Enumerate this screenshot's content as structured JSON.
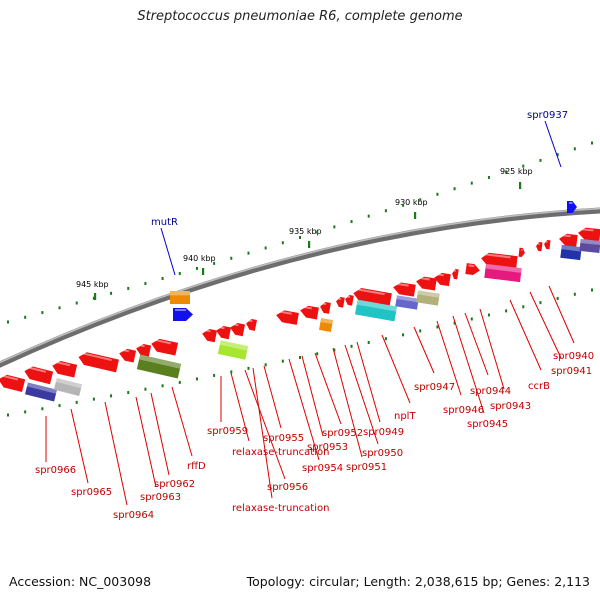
{
  "title": "Streptococcus pneumoniae R6, complete genome",
  "accession": "Accession: NC_003098",
  "topology": "Topology: circular; Length: 2,038,615 bp; Genes: 2,113",
  "colors": {
    "gene": "#ee1111",
    "label": "#c00000",
    "top_label": "#000099",
    "tick": "#1a7a1a",
    "backbone": "#888888"
  },
  "scale_ticks": [
    {
      "label": "945 kbp"
    },
    {
      "label": "940 kbp"
    },
    {
      "label": "935 kbp"
    },
    {
      "label": "930 kbp"
    },
    {
      "label": "925 kbp"
    }
  ],
  "top_labels": [
    {
      "text": "mutR"
    },
    {
      "text": "spr0937"
    }
  ],
  "gene_labels": [
    {
      "text": "spr0966"
    },
    {
      "text": "spr0965"
    },
    {
      "text": "spr0964"
    },
    {
      "text": "spr0963"
    },
    {
      "text": "spr0962"
    },
    {
      "text": "rffD"
    },
    {
      "text": "spr0959"
    },
    {
      "text": "relaxase-truncation"
    },
    {
      "text": "spr0956"
    },
    {
      "text": "relaxase-truncation"
    },
    {
      "text": "spr0955"
    },
    {
      "text": "spr0954"
    },
    {
      "text": "spr0953"
    },
    {
      "text": "spr0952"
    },
    {
      "text": "spr0951"
    },
    {
      "text": "spr0950"
    },
    {
      "text": "spr0949"
    },
    {
      "text": "nplT"
    },
    {
      "text": "spr0947"
    },
    {
      "text": "spr0946"
    },
    {
      "text": "spr0945"
    },
    {
      "text": "spr0944"
    },
    {
      "text": "spr0943"
    },
    {
      "text": "ccrB"
    },
    {
      "text": "spr0941"
    },
    {
      "text": "spr0940"
    }
  ]
}
